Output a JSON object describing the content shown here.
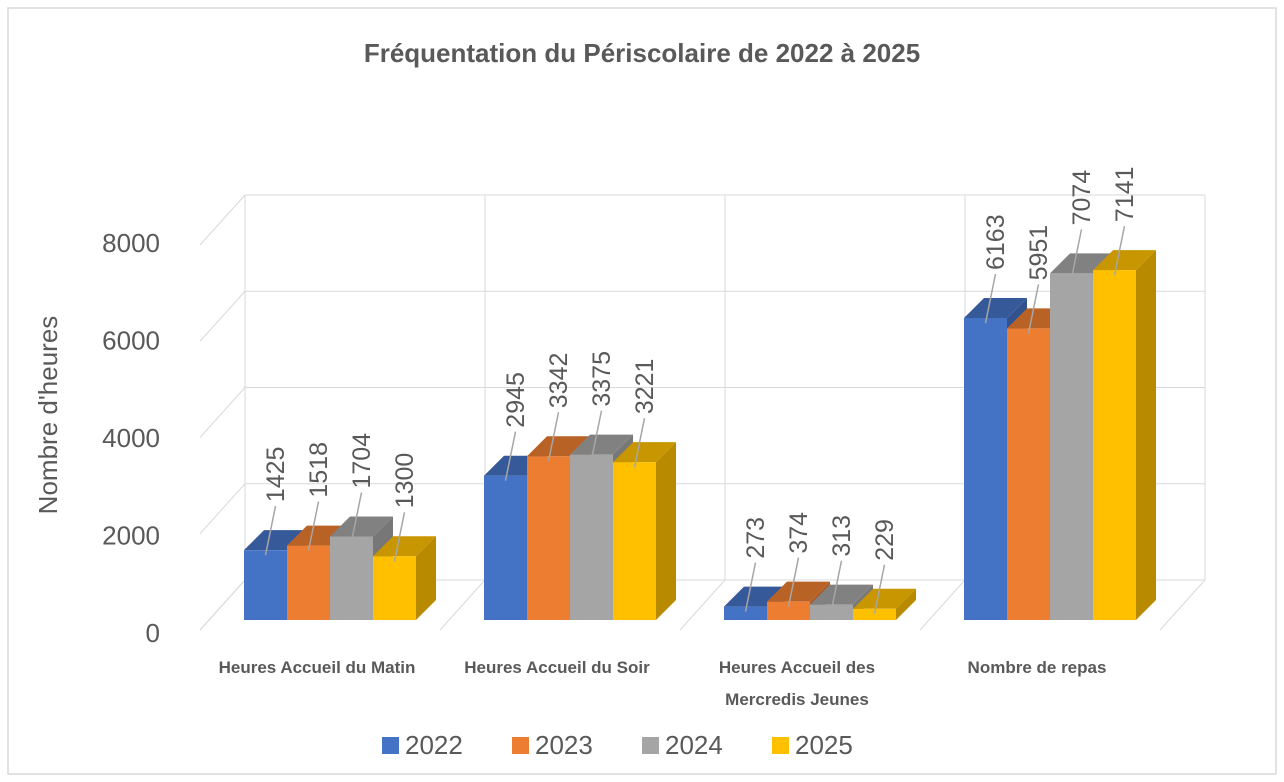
{
  "chart_data": {
    "type": "bar3d",
    "title": "Fréquentation du Périscolaire de 2022 à 2025",
    "ylabel": "Nombre d'heures",
    "categories": [
      "Heures Accueil du Matin",
      "Heures Accueil du Soir",
      "Heures Accueil des Mercredis Jeunes",
      "Nombre de repas"
    ],
    "series": [
      {
        "name": "2022",
        "color": "#4472c4",
        "values": [
          1425,
          2945,
          273,
          6163
        ]
      },
      {
        "name": "2023",
        "color": "#ed7d31",
        "values": [
          1518,
          3342,
          374,
          5951
        ]
      },
      {
        "name": "2024",
        "color": "#a5a5a5",
        "values": [
          1704,
          3375,
          313,
          7074
        ]
      },
      {
        "name": "2025",
        "color": "#ffc000",
        "values": [
          1300,
          3221,
          229,
          7141
        ]
      }
    ],
    "ylim": [
      0,
      8000
    ],
    "yticks": [
      0,
      2000,
      4000,
      6000,
      8000
    ],
    "grid": true,
    "legend": "bottom"
  }
}
